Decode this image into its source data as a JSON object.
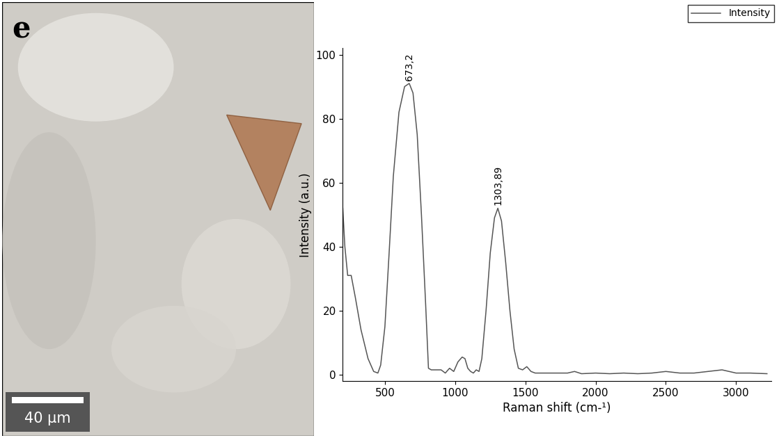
{
  "panel_label": "e",
  "image": {
    "scale_bar": "40 µm"
  },
  "chart_data": {
    "type": "line",
    "x_label": "Raman shift (cm-¹)",
    "y_label": "Intensity (a.u.)",
    "xlim": [
      200,
      3250
    ],
    "xticks": [
      500,
      1000,
      1500,
      2000,
      2500,
      3000
    ],
    "ylim": [
      -2,
      102
    ],
    "yticks": [
      0,
      20,
      40,
      60,
      80,
      100
    ],
    "legend": "upper right",
    "grid": false,
    "series": [
      {
        "name": "Intensity",
        "color": "#555555",
        "x": [
          200,
          215,
          235,
          260,
          290,
          330,
          380,
          420,
          450,
          470,
          500,
          530,
          560,
          600,
          640,
          673.2,
          700,
          730,
          760,
          790,
          810,
          830,
          860,
          900,
          930,
          960,
          990,
          1020,
          1050,
          1070,
          1090,
          1110,
          1130,
          1150,
          1170,
          1190,
          1220,
          1250,
          1280,
          1303.89,
          1330,
          1360,
          1390,
          1420,
          1450,
          1480,
          1510,
          1540,
          1570,
          1600,
          1700,
          1800,
          1850,
          1900,
          2000,
          2100,
          2200,
          2300,
          2400,
          2500,
          2600,
          2700,
          2800,
          2900,
          3000,
          3100,
          3220
        ],
        "values": [
          52,
          40,
          31,
          31,
          24,
          14,
          5,
          1,
          0.5,
          3,
          15,
          38,
          62,
          82,
          90,
          91,
          88,
          75,
          50,
          22,
          2,
          1.5,
          1.5,
          1.5,
          0.5,
          2,
          1,
          4,
          5.5,
          5,
          2,
          1,
          0.5,
          1.5,
          1,
          5,
          20,
          38,
          49,
          52,
          48,
          35,
          20,
          8,
          2,
          1.5,
          2.5,
          1,
          0.5,
          0.5,
          0.5,
          0.5,
          1,
          0.3,
          0.5,
          0.3,
          0.5,
          0.3,
          0.5,
          1,
          0.5,
          0.5,
          1,
          1.5,
          0.5,
          0.5,
          0.3
        ]
      }
    ],
    "annotations": [
      {
        "x": 673.2,
        "y": 91,
        "text": "673,2"
      },
      {
        "x": 1303.89,
        "y": 52,
        "text": "1303,89"
      }
    ]
  }
}
